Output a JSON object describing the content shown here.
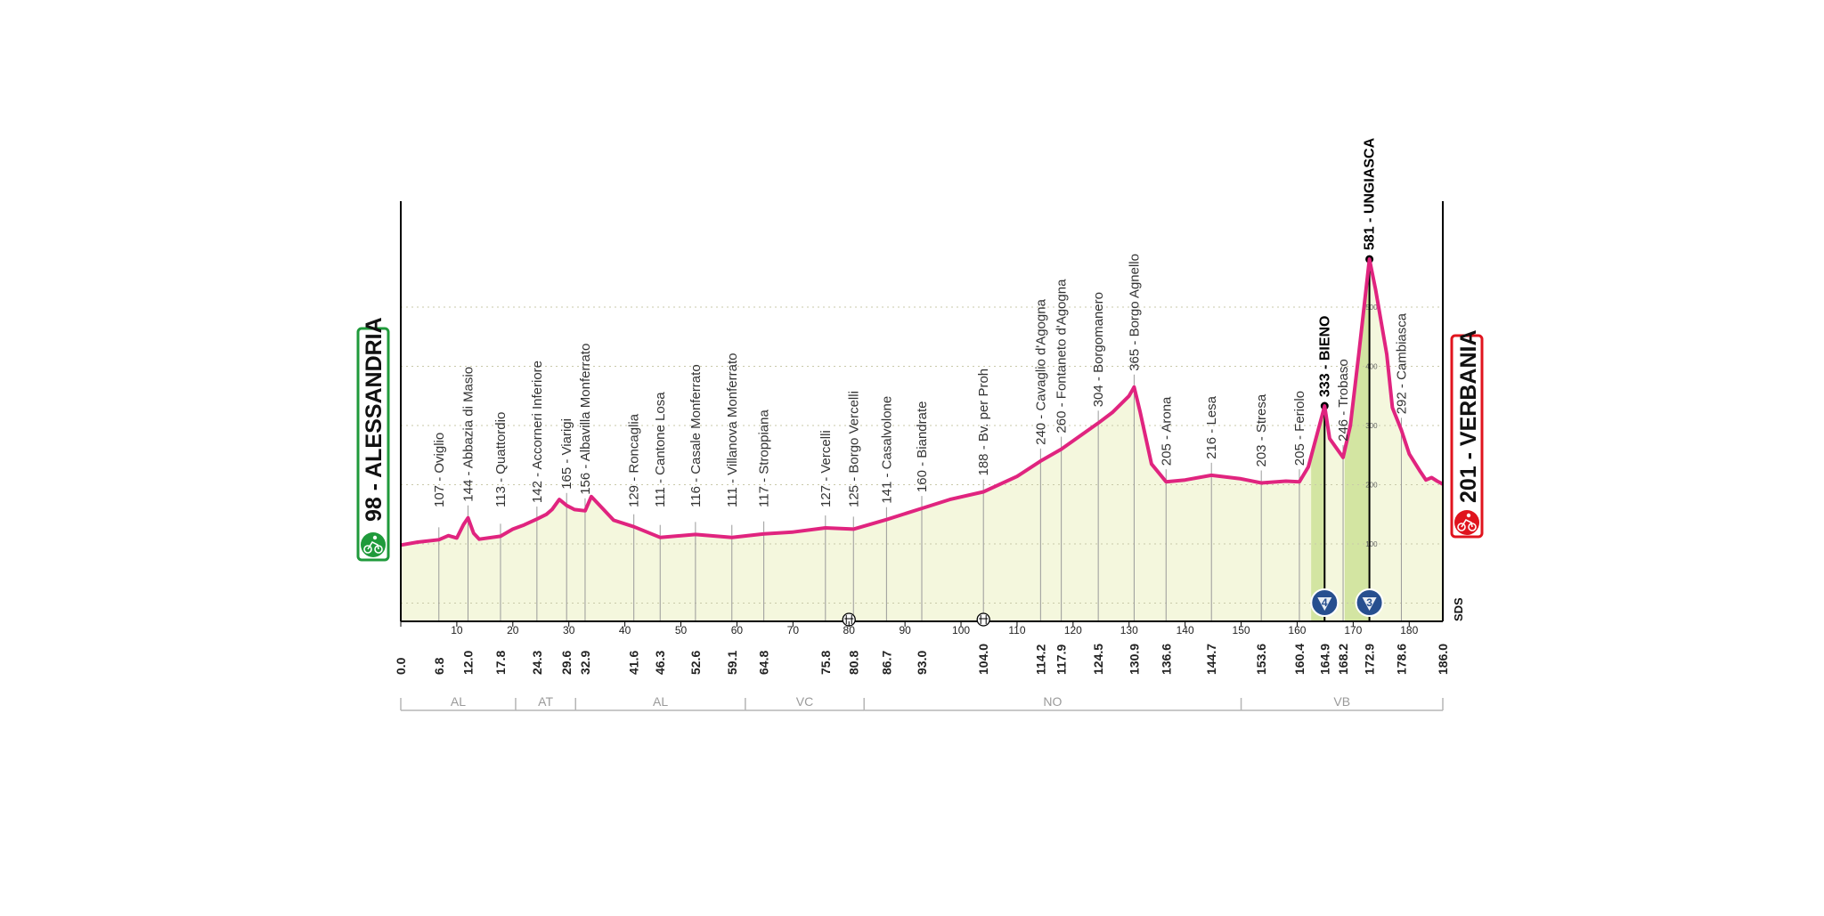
{
  "stage": {
    "start": {
      "altitude": "98",
      "name": "ALESSANDRIA",
      "color": "#1f9a3b",
      "icon": "cyclist-icon"
    },
    "finish": {
      "altitude": "201",
      "name": "VERBANIA",
      "color": "#e0141e",
      "icon": "cyclist-icon"
    },
    "sponsor": "SDS"
  },
  "chart_data": {
    "type": "area",
    "title": "",
    "xlabel": "",
    "ylabel": "",
    "xlim": [
      0,
      186
    ],
    "line_color": "#e0247f",
    "fill_color": "#f4f7dd",
    "x_ticks": [
      0,
      10,
      20,
      30,
      40,
      50,
      60,
      70,
      80,
      90,
      100,
      110,
      120,
      130,
      140,
      150,
      160,
      170,
      180
    ],
    "elevation_profile": {
      "km": [
        0,
        3,
        6.8,
        8.5,
        10,
        11.2,
        12,
        13,
        14,
        17.8,
        20,
        22,
        24.3,
        26,
        27,
        28.3,
        29.6,
        31,
        32.9,
        34,
        38,
        41.6,
        46.3,
        52.6,
        59.1,
        64.8,
        70,
        75.8,
        80.8,
        86.7,
        93,
        98,
        104,
        110,
        114.2,
        117.9,
        124.5,
        127,
        130,
        130.9,
        132,
        134,
        136.6,
        140,
        144.7,
        150,
        153.6,
        158,
        160.4,
        162,
        164.9,
        165.8,
        167,
        168.2,
        169.5,
        171,
        172.9,
        174,
        176,
        177,
        178.6,
        180,
        182,
        183,
        184,
        185,
        186
      ],
      "altitude_m": [
        98,
        103,
        107,
        114,
        110,
        133,
        144,
        118,
        108,
        113,
        125,
        132,
        142,
        150,
        158,
        175,
        165,
        158,
        156,
        180,
        140,
        129,
        111,
        116,
        111,
        117,
        120,
        127,
        125,
        141,
        160,
        175,
        188,
        214,
        240,
        260,
        304,
        322,
        350,
        365,
        322,
        235,
        205,
        208,
        216,
        210,
        203,
        206,
        205,
        230,
        333,
        278,
        262,
        246,
        300,
        420,
        581,
        530,
        420,
        330,
        292,
        252,
        222,
        208,
        212,
        206,
        201
      ]
    },
    "waypoints": [
      {
        "km": "0.0",
        "altitude": "98",
        "name": "ALESSANDRIA"
      },
      {
        "km": "6.8",
        "altitude": "107",
        "name": "Oviglio"
      },
      {
        "km": "12.0",
        "altitude": "144",
        "name": "Abbazia di Masio"
      },
      {
        "km": "17.8",
        "altitude": "113",
        "name": "Quattordio"
      },
      {
        "km": "24.3",
        "altitude": "142",
        "name": "Accorneri Inferiore"
      },
      {
        "km": "29.6",
        "altitude": "165",
        "name": "Viarigi"
      },
      {
        "km": "32.9",
        "altitude": "156",
        "name": "Albavilla Monferrato"
      },
      {
        "km": "41.6",
        "altitude": "129",
        "name": "Roncaglia"
      },
      {
        "km": "46.3",
        "altitude": "111",
        "name": "Cantone Losa"
      },
      {
        "km": "52.6",
        "altitude": "116",
        "name": "Casale Monferrato"
      },
      {
        "km": "59.1",
        "altitude": "111",
        "name": "Villanova Monferrato"
      },
      {
        "km": "64.8",
        "altitude": "117",
        "name": "Stroppiana"
      },
      {
        "km": "75.8",
        "altitude": "127",
        "name": "Vercelli"
      },
      {
        "km": "80.8",
        "altitude": "125",
        "name": "Borgo Vercelli"
      },
      {
        "km": "86.7",
        "altitude": "141",
        "name": "Casalvolone"
      },
      {
        "km": "93.0",
        "altitude": "160",
        "name": "Biandrate"
      },
      {
        "km": "104.0",
        "altitude": "188",
        "name": "Bv. per Proh"
      },
      {
        "km": "114.2",
        "altitude": "240",
        "name": "Cavaglio d'Agogna"
      },
      {
        "km": "117.9",
        "altitude": "260",
        "name": "Fontaneto d'Agogna"
      },
      {
        "km": "124.5",
        "altitude": "304",
        "name": "Borgomanero"
      },
      {
        "km": "130.9",
        "altitude": "365",
        "name": "Borgo Agnello"
      },
      {
        "km": "136.6",
        "altitude": "205",
        "name": "Arona"
      },
      {
        "km": "144.7",
        "altitude": "216",
        "name": "Lesa"
      },
      {
        "km": "153.6",
        "altitude": "203",
        "name": "Stresa"
      },
      {
        "km": "160.4",
        "altitude": "205",
        "name": "Feriolo"
      },
      {
        "km": "164.9",
        "altitude": "333",
        "name": "BIENO",
        "climb": true
      },
      {
        "km": "168.2",
        "altitude": "246",
        "name": "Trobaso"
      },
      {
        "km": "172.9",
        "altitude": "581",
        "name": "UNGIASCA",
        "climb": true
      },
      {
        "km": "178.6",
        "altitude": "292",
        "name": "Cambiasca"
      },
      {
        "km": "186.0",
        "altitude": "201",
        "name": "VERBANIA"
      }
    ],
    "climbs": [
      {
        "name": "BIENO",
        "km": 164.9,
        "category": "4",
        "start_km": 162.5
      },
      {
        "name": "UNGIASCA",
        "km": 172.9,
        "category": "3",
        "start_km": 168.5
      }
    ],
    "climb_scale_ticks": [
      "500",
      "400",
      "300",
      "200",
      "100",
      "0"
    ],
    "markers": [
      {
        "km": 80,
        "icon": "sprint-icon"
      },
      {
        "km": 104,
        "icon": "sprint-icon"
      }
    ],
    "provinces": [
      {
        "label": "AL",
        "from": 0,
        "to": 20.5
      },
      {
        "label": "AT",
        "from": 20.5,
        "to": 31.2
      },
      {
        "label": "AL",
        "from": 31.2,
        "to": 61.5
      },
      {
        "label": "VC",
        "from": 61.5,
        "to": 82.7
      },
      {
        "label": "NO",
        "from": 82.7,
        "to": 150
      },
      {
        "label": "VB",
        "from": 150,
        "to": 186
      }
    ]
  }
}
